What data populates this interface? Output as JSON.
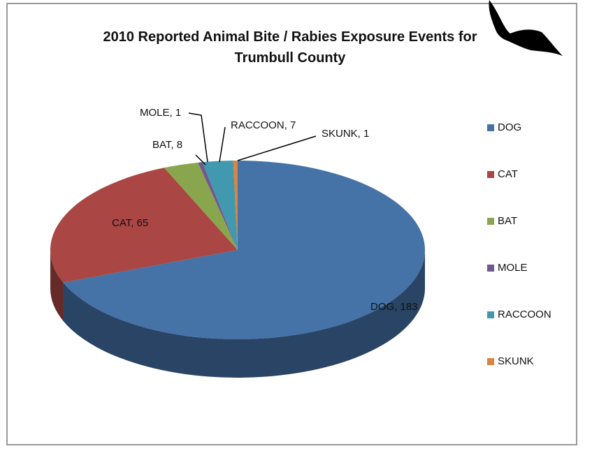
{
  "chart_data": {
    "type": "pie",
    "title": "2010 Reported Animal Bite / Rabies Exposure Events for Trumbull County",
    "categories": [
      "DOG",
      "CAT",
      "BAT",
      "MOLE",
      "RACCOON",
      "SKUNK"
    ],
    "values": [
      183,
      65,
      8,
      1,
      7,
      1
    ],
    "value_labels": [
      "DOG, 183",
      "CAT, 65",
      "BAT, 8",
      "MOLE, 1",
      "RACCOON, 7",
      "SKUNK, 1"
    ],
    "colors": [
      "#4572a7",
      "#aa4643",
      "#89a54e",
      "#71588f",
      "#4198af",
      "#db843d"
    ],
    "legend": "right"
  }
}
